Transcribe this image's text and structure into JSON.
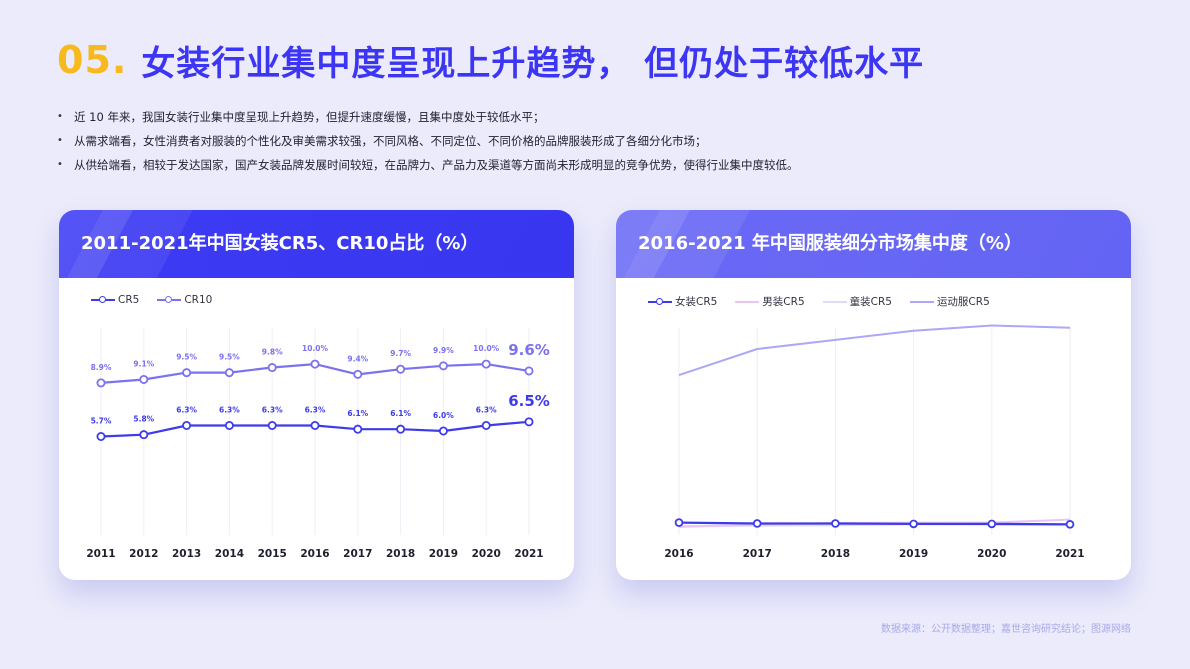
{
  "page": {
    "number": "05.",
    "title": "女装行业集中度呈现上升趋势， 但仍处于较低水平",
    "bullets": [
      "近 10 年来，我国女装行业集中度呈现上升趋势，但提升速度缓慢，且集中度处于较低水平；",
      "从需求端看，女性消费者对服装的个性化及审美需求较强，不同风格、不同定位、不同价格的品牌服装形成了各细分化市场；",
      "从供给端看，相较于发达国家，国产女装品牌发展时间较短，在品牌力、产品力及渠道等方面尚未形成明显的竞争优势，使得行业集中度较低。"
    ],
    "source": "数据来源：公开数据整理；嘉世咨询研究结论；图源网络"
  },
  "colors": {
    "brand": "#3d35f4",
    "accent": "#f7b91d",
    "cr5": "#3d3bea",
    "cr10": "#7b72ee",
    "female": "#3d3bea",
    "male": "#eac4f6",
    "kids": "#dcdcf7",
    "sport": "#aca8f6"
  },
  "chart_data": [
    {
      "type": "line",
      "title": "2011-2021年中国女装CR5、CR10占比（%）",
      "categories": [
        "2011",
        "2012",
        "2013",
        "2014",
        "2015",
        "2016",
        "2017",
        "2018",
        "2019",
        "2020",
        "2021"
      ],
      "series": [
        {
          "name": "CR5",
          "values": [
            5.7,
            5.8,
            6.3,
            6.3,
            6.3,
            6.3,
            6.1,
            6.1,
            6.0,
            6.3,
            6.5
          ],
          "labels": [
            "5.7%",
            "5.8%",
            "6.3%",
            "6.3%",
            "6.3%",
            "6.3%",
            "6.1%",
            "6.1%",
            "6.0%",
            "6.3%",
            "6.5%"
          ]
        },
        {
          "name": "CR10",
          "values": [
            8.9,
            9.1,
            9.5,
            9.5,
            9.8,
            10.0,
            9.4,
            9.7,
            9.9,
            10.0,
            9.6
          ],
          "labels": [
            "8.9%",
            "9.1%",
            "9.5%",
            "9.5%",
            "9.8%",
            "10.0%",
            "9.4%",
            "9.7%",
            "9.9%",
            "10.0%",
            "9.6%"
          ]
        }
      ],
      "grid": true,
      "legend": "top-left"
    },
    {
      "type": "line",
      "title": "2016-2021 年中国服装细分市场集中度（%）",
      "categories": [
        "2016",
        "2017",
        "2018",
        "2019",
        "2020",
        "2021"
      ],
      "series": [
        {
          "name": "女装CR5",
          "values": [
            6.3,
            6.1,
            6.1,
            6.0,
            6.0,
            5.9
          ]
        },
        {
          "name": "男装CR5",
          "values": [
            5.3,
            5.8,
            6.2,
            6.3,
            6.3,
            7.0
          ]
        },
        {
          "name": "童装CR5",
          "values": [
            5.5,
            5.6,
            5.7,
            5.9,
            5.8,
            5.7
          ]
        },
        {
          "name": "运动服CR5",
          "values": [
            40.2,
            46.2,
            48.3,
            50.4,
            51.6,
            51.1
          ]
        }
      ],
      "ylim": [
        0,
        60
      ],
      "grid": true,
      "legend": "top-left"
    }
  ]
}
